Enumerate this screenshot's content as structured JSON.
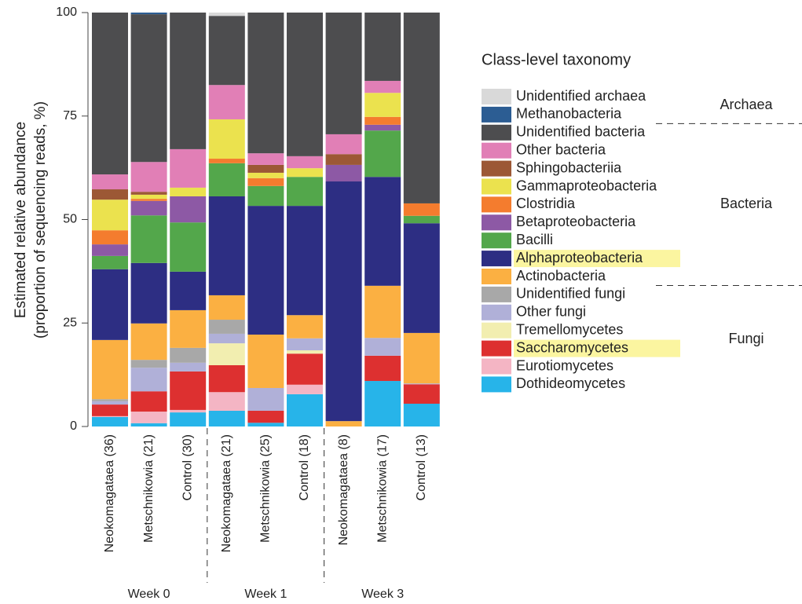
{
  "chart_data": {
    "type": "stacked-bar",
    "ylabel": [
      "Estimated relative abundance",
      "(proportion of sequencing reads, %)"
    ],
    "categories": [
      "Neokomagataea (36)",
      "Metschnikowia (21)",
      "Control (30)",
      "Neokomagataea (21)",
      "Metschnikowia (25)",
      "Control (18)",
      "Neokomagataea (8)",
      "Metschnikowia (17)",
      "Control (13)"
    ],
    "groups": [
      {
        "label": "Week 0",
        "size": 3
      },
      {
        "label": "Week 1",
        "size": 3
      },
      {
        "label": "Week 3",
        "size": 3
      }
    ],
    "ylim": [
      0,
      100
    ],
    "yticks": [
      0,
      25,
      50,
      75,
      100
    ],
    "legend_title": "Class-level taxonomy",
    "legend_groups": [
      {
        "label": "Archaea",
        "size": 2
      },
      {
        "label": "Bacteria",
        "size": 9
      },
      {
        "label": "Fungi",
        "size": 6
      }
    ],
    "series": [
      {
        "name": "Dothideomycetes",
        "color": "#27b4e9",
        "values": [
          2.3,
          0.8,
          3.4,
          3.8,
          0.9,
          7.8,
          0,
          11,
          5.5
        ]
      },
      {
        "name": "Eurotiomycetes",
        "color": "#f4b5c4",
        "values": [
          0.2,
          2.8,
          0.6,
          4.5,
          0,
          2.3,
          0,
          0,
          0
        ]
      },
      {
        "name": "Saccharomycetes",
        "color": "#dd3030",
        "highlight": true,
        "values": [
          2.8,
          4.9,
          9.3,
          6.5,
          2.9,
          7.5,
          0,
          6.1,
          4.7
        ]
      },
      {
        "name": "Tremellomycetes",
        "color": "#f2eeb0",
        "values": [
          0,
          0,
          0,
          5.3,
          0,
          0.8,
          0,
          0,
          0
        ]
      },
      {
        "name": "Other fungi",
        "color": "#b0b0d8",
        "values": [
          0.8,
          5.7,
          2.1,
          2.3,
          5.5,
          2.9,
          0,
          4.3,
          0.2
        ]
      },
      {
        "name": "Unidentified fungi",
        "color": "#a8a8a8",
        "values": [
          0.5,
          1.9,
          3.6,
          3.4,
          0,
          0,
          0,
          0,
          0
        ]
      },
      {
        "name": "Actinobacteria",
        "color": "#fbb042",
        "values": [
          14.3,
          8.8,
          9.1,
          5.9,
          12.9,
          5.6,
          1.3,
          12.6,
          12.2
        ]
      },
      {
        "name": "Alphaproteobacteria",
        "color": "#2d2e83",
        "highlight": true,
        "values": [
          17.1,
          14.6,
          9.3,
          23.9,
          31.1,
          26.4,
          57.9,
          26.3,
          26.5
        ]
      },
      {
        "name": "Bacilli",
        "color": "#53a74b",
        "values": [
          3.2,
          11.5,
          11.9,
          8,
          4.8,
          7,
          0,
          11.2,
          1.8
        ]
      },
      {
        "name": "Betaproteobacteria",
        "color": "#8d59a5",
        "values": [
          2.8,
          3.5,
          6.3,
          0,
          0,
          0,
          4,
          1.4,
          0
        ]
      },
      {
        "name": "Clostridia",
        "color": "#f47c2e",
        "values": [
          3.4,
          0.5,
          0,
          1.1,
          1.9,
          0,
          0,
          1.9,
          3
        ]
      },
      {
        "name": "Gammaproteobacteria",
        "color": "#ebe24e",
        "values": [
          7.4,
          1,
          2.1,
          9.5,
          1.3,
          2.1,
          0,
          5.8,
          0
        ]
      },
      {
        "name": "Sphingobacteriia",
        "color": "#9c5835",
        "values": [
          2.5,
          0.7,
          0,
          0,
          1.9,
          0,
          2.6,
          0,
          0
        ]
      },
      {
        "name": "Other bacteria",
        "color": "#e17fb6",
        "values": [
          3.6,
          7.2,
          9.3,
          8.3,
          2.8,
          2.9,
          4.8,
          2.9,
          0
        ]
      },
      {
        "name": "Unidentified bacteria",
        "color": "#4d4d4f",
        "values": [
          39.1,
          35.7,
          33,
          16.7,
          34,
          34.7,
          29.4,
          16.5,
          46.1
        ]
      },
      {
        "name": "Methanobacteria",
        "color": "#2c5d93",
        "values": [
          0,
          0.4,
          0,
          0,
          0,
          0,
          0,
          0,
          0
        ]
      },
      {
        "name": "Unidentified archaea",
        "color": "#d9d9d9",
        "values": [
          0,
          0,
          0,
          0.8,
          0,
          0,
          0,
          0,
          0
        ]
      }
    ]
  }
}
